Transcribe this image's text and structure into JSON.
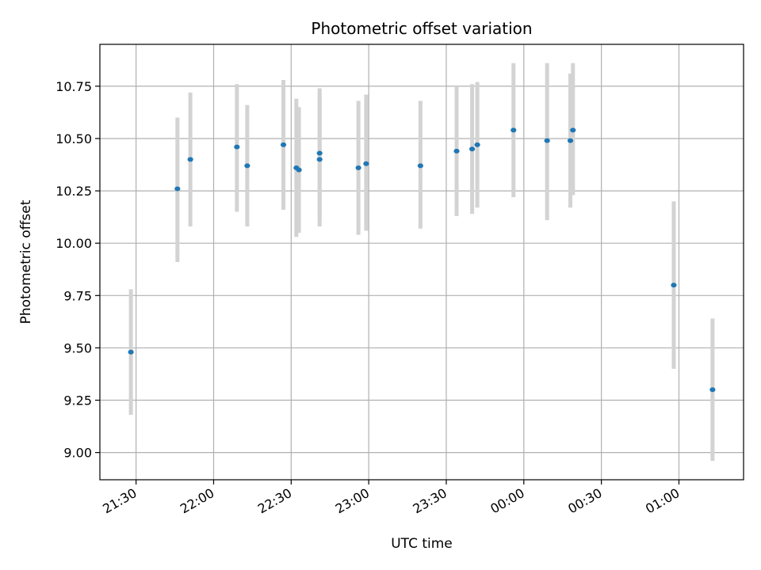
{
  "chart_data": {
    "type": "scatter",
    "title": "Photometric offset variation",
    "xlabel": "UTC time",
    "ylabel": "Photometric offset",
    "x_unit": "UTC time (HH:MM), evening into next morning",
    "xlim": [
      "21:16",
      "01:25"
    ],
    "ylim": [
      8.87,
      10.95
    ],
    "x_ticks": [
      "21:30",
      "22:00",
      "22:30",
      "23:00",
      "23:30",
      "00:00",
      "00:30",
      "01:00"
    ],
    "y_ticks": [
      "9.00",
      "9.25",
      "9.50",
      "9.75",
      "10.00",
      "10.25",
      "10.50",
      "10.75"
    ],
    "grid": true,
    "colors": {
      "marker": "#1f77b4",
      "errorbar": "#d3d3d3",
      "grid": "#b0b0b0"
    },
    "points": [
      {
        "x": "21:28",
        "y": 9.48,
        "yerr_low": 9.18,
        "yerr_high": 9.78
      },
      {
        "x": "21:46",
        "y": 10.26,
        "yerr_low": 9.91,
        "yerr_high": 10.6
      },
      {
        "x": "21:51",
        "y": 10.4,
        "yerr_low": 10.08,
        "yerr_high": 10.72
      },
      {
        "x": "22:09",
        "y": 10.46,
        "yerr_low": 10.15,
        "yerr_high": 10.76
      },
      {
        "x": "22:13",
        "y": 10.37,
        "yerr_low": 10.08,
        "yerr_high": 10.66
      },
      {
        "x": "22:27",
        "y": 10.47,
        "yerr_low": 10.16,
        "yerr_high": 10.78
      },
      {
        "x": "22:32",
        "y": 10.36,
        "yerr_low": 10.03,
        "yerr_high": 10.69
      },
      {
        "x": "22:33",
        "y": 10.35,
        "yerr_low": 10.05,
        "yerr_high": 10.65
      },
      {
        "x": "22:41",
        "y": 10.43,
        "yerr_low": 10.11,
        "yerr_high": 10.74
      },
      {
        "x": "22:41",
        "y": 10.4,
        "yerr_low": 10.08,
        "yerr_high": 10.72
      },
      {
        "x": "22:56",
        "y": 10.36,
        "yerr_low": 10.04,
        "yerr_high": 10.68
      },
      {
        "x": "22:59",
        "y": 10.38,
        "yerr_low": 10.06,
        "yerr_high": 10.71
      },
      {
        "x": "23:20",
        "y": 10.37,
        "yerr_low": 10.07,
        "yerr_high": 10.68
      },
      {
        "x": "23:34",
        "y": 10.44,
        "yerr_low": 10.13,
        "yerr_high": 10.75
      },
      {
        "x": "23:40",
        "y": 10.45,
        "yerr_low": 10.14,
        "yerr_high": 10.76
      },
      {
        "x": "23:42",
        "y": 10.47,
        "yerr_low": 10.17,
        "yerr_high": 10.77
      },
      {
        "x": "23:56",
        "y": 10.54,
        "yerr_low": 10.22,
        "yerr_high": 10.86
      },
      {
        "x": "00:09",
        "y": 10.49,
        "yerr_low": 10.11,
        "yerr_high": 10.86
      },
      {
        "x": "00:18",
        "y": 10.49,
        "yerr_low": 10.17,
        "yerr_high": 10.81
      },
      {
        "x": "00:19",
        "y": 10.54,
        "yerr_low": 10.23,
        "yerr_high": 10.86
      },
      {
        "x": "00:58",
        "y": 9.8,
        "yerr_low": 9.4,
        "yerr_high": 10.2
      },
      {
        "x": "01:13",
        "y": 9.3,
        "yerr_low": 8.96,
        "yerr_high": 9.64
      }
    ]
  }
}
